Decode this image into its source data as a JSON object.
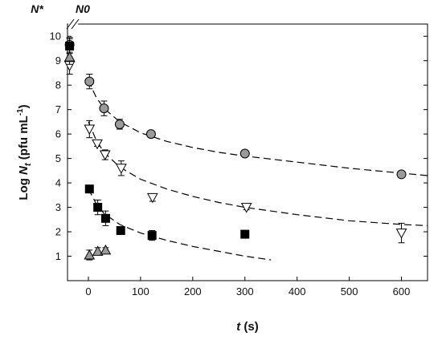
{
  "chart_data": {
    "type": "scatter",
    "title": "",
    "xlabel_main": "t",
    "xlabel_unit": " (s)",
    "ylabel_prefix": "Log ",
    "ylabel_var": "N",
    "ylabel_sub": "t",
    "ylabel_unit": " (pfu mL",
    "ylabel_sup": "-1",
    "ylabel_close": ")",
    "top_markers": [
      {
        "label": "N*",
        "x": -32
      },
      {
        "label": "N0",
        "x": -5
      }
    ],
    "x_axis_break": true,
    "xlim": [
      -40,
      650
    ],
    "ylim": [
      0,
      10.5
    ],
    "xticks": [
      0,
      100,
      200,
      300,
      400,
      500,
      600
    ],
    "yticks": [
      1,
      2,
      3,
      4,
      5,
      6,
      7,
      8,
      9,
      10
    ],
    "grid": false,
    "legend": "none",
    "series": [
      {
        "marker": "circle",
        "fill": "#9a9a9a",
        "points": [
          {
            "x": -36,
            "y": 9.65,
            "err": 0.3
          },
          {
            "x": 2,
            "y": 8.15,
            "err": 0.3
          },
          {
            "x": 30,
            "y": 7.05,
            "err": 0.3
          },
          {
            "x": 60,
            "y": 6.4,
            "err": 0.2
          },
          {
            "x": 120,
            "y": 6.0,
            "err": 0.12
          },
          {
            "x": 300,
            "y": 5.2,
            "err": 0.1
          },
          {
            "x": 600,
            "y": 4.35,
            "err": 0.1
          }
        ],
        "fit": [
          [
            0,
            8.2
          ],
          [
            15,
            7.5
          ],
          [
            30,
            7.05
          ],
          [
            60,
            6.5
          ],
          [
            100,
            6.05
          ],
          [
            150,
            5.7
          ],
          [
            200,
            5.45
          ],
          [
            250,
            5.25
          ],
          [
            300,
            5.1
          ],
          [
            400,
            4.85
          ],
          [
            500,
            4.6
          ],
          [
            600,
            4.4
          ],
          [
            650,
            4.3
          ]
        ]
      },
      {
        "marker": "triangle-down",
        "fill": "#ffffff",
        "points": [
          {
            "x": -36,
            "y": 8.8,
            "err": 0.35
          },
          {
            "x": 2,
            "y": 6.2,
            "err": 0.35
          },
          {
            "x": 17,
            "y": 5.6,
            "err": 0.1
          },
          {
            "x": 32,
            "y": 5.15,
            "err": 0.2
          },
          {
            "x": 63,
            "y": 4.6,
            "err": 0.3
          },
          {
            "x": 123,
            "y": 3.4,
            "err": 0.15
          },
          {
            "x": 303,
            "y": 3.0,
            "err": 0.1
          },
          {
            "x": 600,
            "y": 1.95,
            "err": 0.4
          }
        ],
        "fit": [
          [
            0,
            6.5
          ],
          [
            15,
            5.75
          ],
          [
            30,
            5.25
          ],
          [
            60,
            4.65
          ],
          [
            100,
            4.15
          ],
          [
            150,
            3.75
          ],
          [
            200,
            3.45
          ],
          [
            250,
            3.2
          ],
          [
            300,
            3.0
          ],
          [
            400,
            2.7
          ],
          [
            500,
            2.45
          ],
          [
            600,
            2.3
          ],
          [
            650,
            2.25
          ]
        ]
      },
      {
        "marker": "square",
        "fill": "#000000",
        "points": [
          {
            "x": -36,
            "y": 9.6,
            "err": 0.3
          },
          {
            "x": 2,
            "y": 3.75,
            "err": 0.1
          },
          {
            "x": 18,
            "y": 3.0,
            "err": 0.3
          },
          {
            "x": 33,
            "y": 2.55,
            "err": 0.3
          },
          {
            "x": 62,
            "y": 2.05,
            "err": 0.1
          },
          {
            "x": 122,
            "y": 1.85,
            "err": 0.2
          },
          {
            "x": 300,
            "y": 1.9,
            "err": 0.1
          }
        ],
        "fit": [
          [
            0,
            3.75
          ],
          [
            15,
            3.15
          ],
          [
            30,
            2.75
          ],
          [
            60,
            2.3
          ],
          [
            100,
            1.95
          ],
          [
            150,
            1.65
          ],
          [
            200,
            1.4
          ],
          [
            250,
            1.2
          ],
          [
            300,
            1.0
          ],
          [
            350,
            0.85
          ]
        ]
      },
      {
        "marker": "triangle-up",
        "fill": "#9a9a9a",
        "points": [
          {
            "x": -36,
            "y": 9.15,
            "err": 0.3
          },
          {
            "x": 2,
            "y": 1.05,
            "err": 0.2
          },
          {
            "x": 18,
            "y": 1.2,
            "err": 0.15
          },
          {
            "x": 33,
            "y": 1.25,
            "err": 0.1
          }
        ]
      }
    ]
  }
}
